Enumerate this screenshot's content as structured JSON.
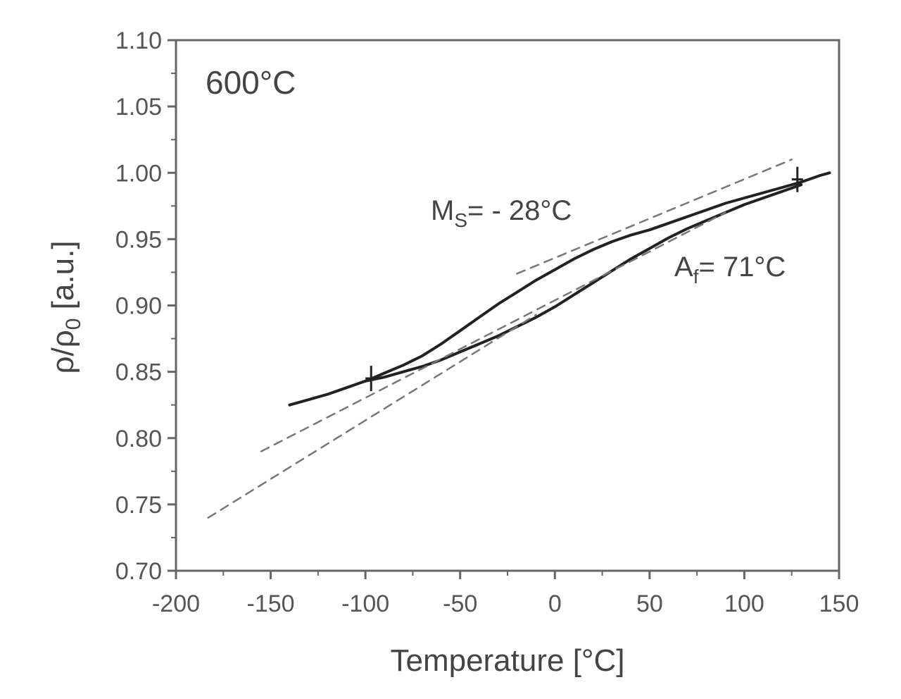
{
  "chart_data": {
    "type": "line",
    "title": "",
    "xlabel": "Temperature [°C]",
    "ylabel": "ρ/ρ",
    "ylabel_sub": "0",
    "ylabel_unit": " [a.u.]",
    "xlim": [
      -200,
      150
    ],
    "ylim": [
      0.7,
      1.1
    ],
    "x_ticks": [
      -200,
      -150,
      -100,
      -50,
      0,
      50,
      100,
      150
    ],
    "y_ticks": [
      0.7,
      0.75,
      0.8,
      0.85,
      0.9,
      0.95,
      1.0,
      1.05,
      1.1
    ],
    "x_tick_labels": [
      "-200",
      "-150",
      "-100",
      "-50",
      "0",
      "50",
      "100",
      "150"
    ],
    "y_tick_labels": [
      "0.70",
      "0.75",
      "0.80",
      "0.85",
      "0.90",
      "0.95",
      "1.00",
      "1.05",
      "1.10"
    ],
    "grid": false,
    "series": [
      {
        "style": "solid",
        "color": "#222222",
        "x": [
          -140,
          -130,
          -120,
          -110,
          -100,
          -95,
          -90,
          -80,
          -70,
          -60,
          -50,
          -40,
          -30,
          -20,
          -10,
          0,
          10,
          20,
          30,
          40,
          50,
          60,
          70,
          80,
          90,
          100,
          110,
          120,
          130,
          140,
          145
        ],
        "y": [
          0.825,
          0.829,
          0.833,
          0.838,
          0.843,
          0.846,
          0.849,
          0.855,
          0.862,
          0.871,
          0.881,
          0.891,
          0.901,
          0.91,
          0.919,
          0.927,
          0.935,
          0.942,
          0.948,
          0.953,
          0.957,
          0.962,
          0.967,
          0.972,
          0.977,
          0.981,
          0.985,
          0.989,
          0.993,
          0.998,
          1.0
        ]
      },
      {
        "style": "solid",
        "color": "#222222",
        "x": [
          -100,
          -90,
          -80,
          -70,
          -60,
          -50,
          -40,
          -30,
          -20,
          -10,
          0,
          10,
          20,
          30,
          40,
          50,
          60,
          70,
          80,
          90,
          100,
          110,
          120,
          130
        ],
        "y": [
          0.843,
          0.846,
          0.85,
          0.854,
          0.859,
          0.865,
          0.871,
          0.877,
          0.884,
          0.891,
          0.899,
          0.908,
          0.917,
          0.926,
          0.935,
          0.943,
          0.951,
          0.958,
          0.964,
          0.97,
          0.976,
          0.981,
          0.986,
          0.991
        ]
      },
      {
        "style": "dashed",
        "color": "#777777",
        "x": [
          -155,
          90
        ],
        "y": [
          0.79,
          0.97
        ]
      },
      {
        "style": "dashed",
        "color": "#777777",
        "x": [
          -20,
          125
        ],
        "y": [
          0.924,
          1.01
        ]
      },
      {
        "style": "dashed",
        "color": "#777777",
        "x": [
          -183,
          -10
        ],
        "y": [
          0.74,
          0.893
        ]
      }
    ],
    "annotations": {
      "panel_label": "600°C",
      "ms_main": "M",
      "ms_sub": "S",
      "ms_rest": "= - 28°C",
      "af_main": "A",
      "af_sub": "f",
      "af_rest": "= 71°C"
    },
    "markers": [
      {
        "x": -97,
        "y": 0.845
      },
      {
        "x": 128,
        "y": 0.995
      }
    ]
  }
}
